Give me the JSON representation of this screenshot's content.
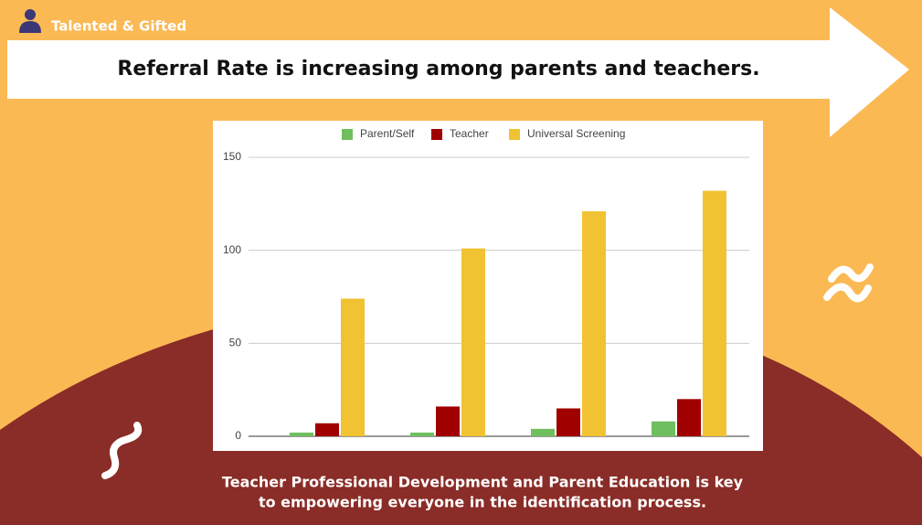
{
  "header": {
    "label": "Talented & Gifted",
    "title": "Referral Rate is increasing among parents and teachers."
  },
  "caption": [
    "Teacher Professional Development and Parent Education is key",
    "to empowering everyone in the identification process."
  ],
  "chart_data": {
    "type": "bar",
    "categories": [
      null,
      null,
      null,
      null
    ],
    "series": [
      {
        "name": "Parent/Self",
        "color": "#6fbf5f",
        "values": [
          2,
          2,
          4,
          8
        ]
      },
      {
        "name": "Teacher",
        "color": "#a00000",
        "values": [
          7,
          16,
          15,
          20
        ]
      },
      {
        "name": "Universal Screening",
        "color": "#f1c232",
        "values": [
          74,
          101,
          121,
          132
        ]
      }
    ],
    "ylim": [
      0,
      150
    ],
    "yticks": [
      0,
      50,
      100,
      150
    ],
    "grid": true,
    "legend": "top"
  }
}
